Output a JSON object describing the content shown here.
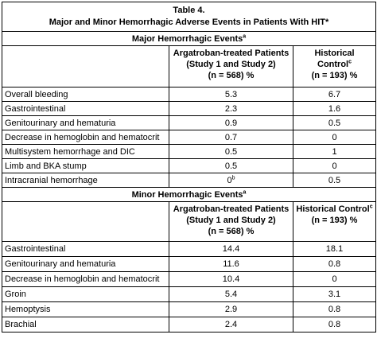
{
  "title": "Table 4.",
  "subtitle": "Major and Minor Hemorrhagic Adverse Events in Patients With HIT*",
  "sections": [
    {
      "heading": {
        "text": "Major Hemorrhagic Events",
        "sup": "a"
      },
      "columns": [
        [
          [
            "Argatroban-treated Patients"
          ],
          [
            "(Study 1 and Study 2)"
          ],
          [
            "(n = 568) %"
          ]
        ],
        [
          [
            "Historical"
          ],
          [
            {
              "text": "Control",
              "sup": "c"
            }
          ],
          [
            "(n = 193) %"
          ]
        ]
      ],
      "rows": [
        [
          "Overall bleeding",
          "5.3",
          "6.7"
        ],
        [
          "Gastrointestinal",
          "2.3",
          "1.6"
        ],
        [
          "Genitourinary and hematuria",
          "0.9",
          "0.5"
        ],
        [
          "Decrease in hemoglobin and hematocrit",
          "0.7",
          "0"
        ],
        [
          "Multisystem hemorrhage and DIC",
          "0.5",
          "1"
        ],
        [
          "Limb and BKA stump",
          "0.5",
          "0"
        ],
        [
          "Intracranial hemorrhage",
          {
            "text": "0",
            "sup": "b"
          },
          "0.5"
        ]
      ]
    },
    {
      "heading": {
        "text": "Minor Hemorrhagic Events",
        "sup": "a"
      },
      "columns": [
        [
          [
            "Argatroban-treated Patients"
          ],
          [
            "(Study 1 and Study 2)"
          ],
          [
            "(n = 568)  %"
          ]
        ],
        [
          [
            {
              "text": "Historical Control",
              "sup": "c"
            }
          ],
          [
            "(n = 193) %"
          ]
        ]
      ],
      "rows": [
        [
          "Gastrointestinal",
          "14.4",
          "18.1"
        ],
        [
          "Genitourinary and hematuria",
          "11.6",
          "0.8"
        ],
        [
          "Decrease in hemoglobin and hematocrit",
          "10.4",
          "0"
        ],
        [
          "Groin",
          "5.4",
          "3.1"
        ],
        [
          "Hemoptysis",
          "2.9",
          "0.8"
        ],
        [
          "Brachial",
          "2.4",
          "0.8"
        ]
      ]
    }
  ]
}
